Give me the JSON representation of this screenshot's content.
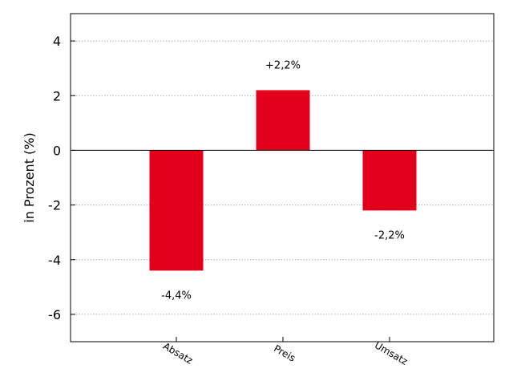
{
  "chart_data": {
    "type": "bar",
    "categories": [
      "Absatz",
      "Preis",
      "Umsatz"
    ],
    "values": [
      -4.4,
      2.2,
      -2.2
    ],
    "data_labels": [
      "-4,4%",
      "+2,2%",
      "-2,2%"
    ],
    "title": "",
    "xlabel": "",
    "ylabel": "in Prozent (%)",
    "ylim": [
      -7,
      5
    ],
    "yticks": [
      4,
      2,
      0,
      -2,
      -4,
      -6
    ],
    "grid": true,
    "bar_color": "#e2001a",
    "zero_line": true
  }
}
